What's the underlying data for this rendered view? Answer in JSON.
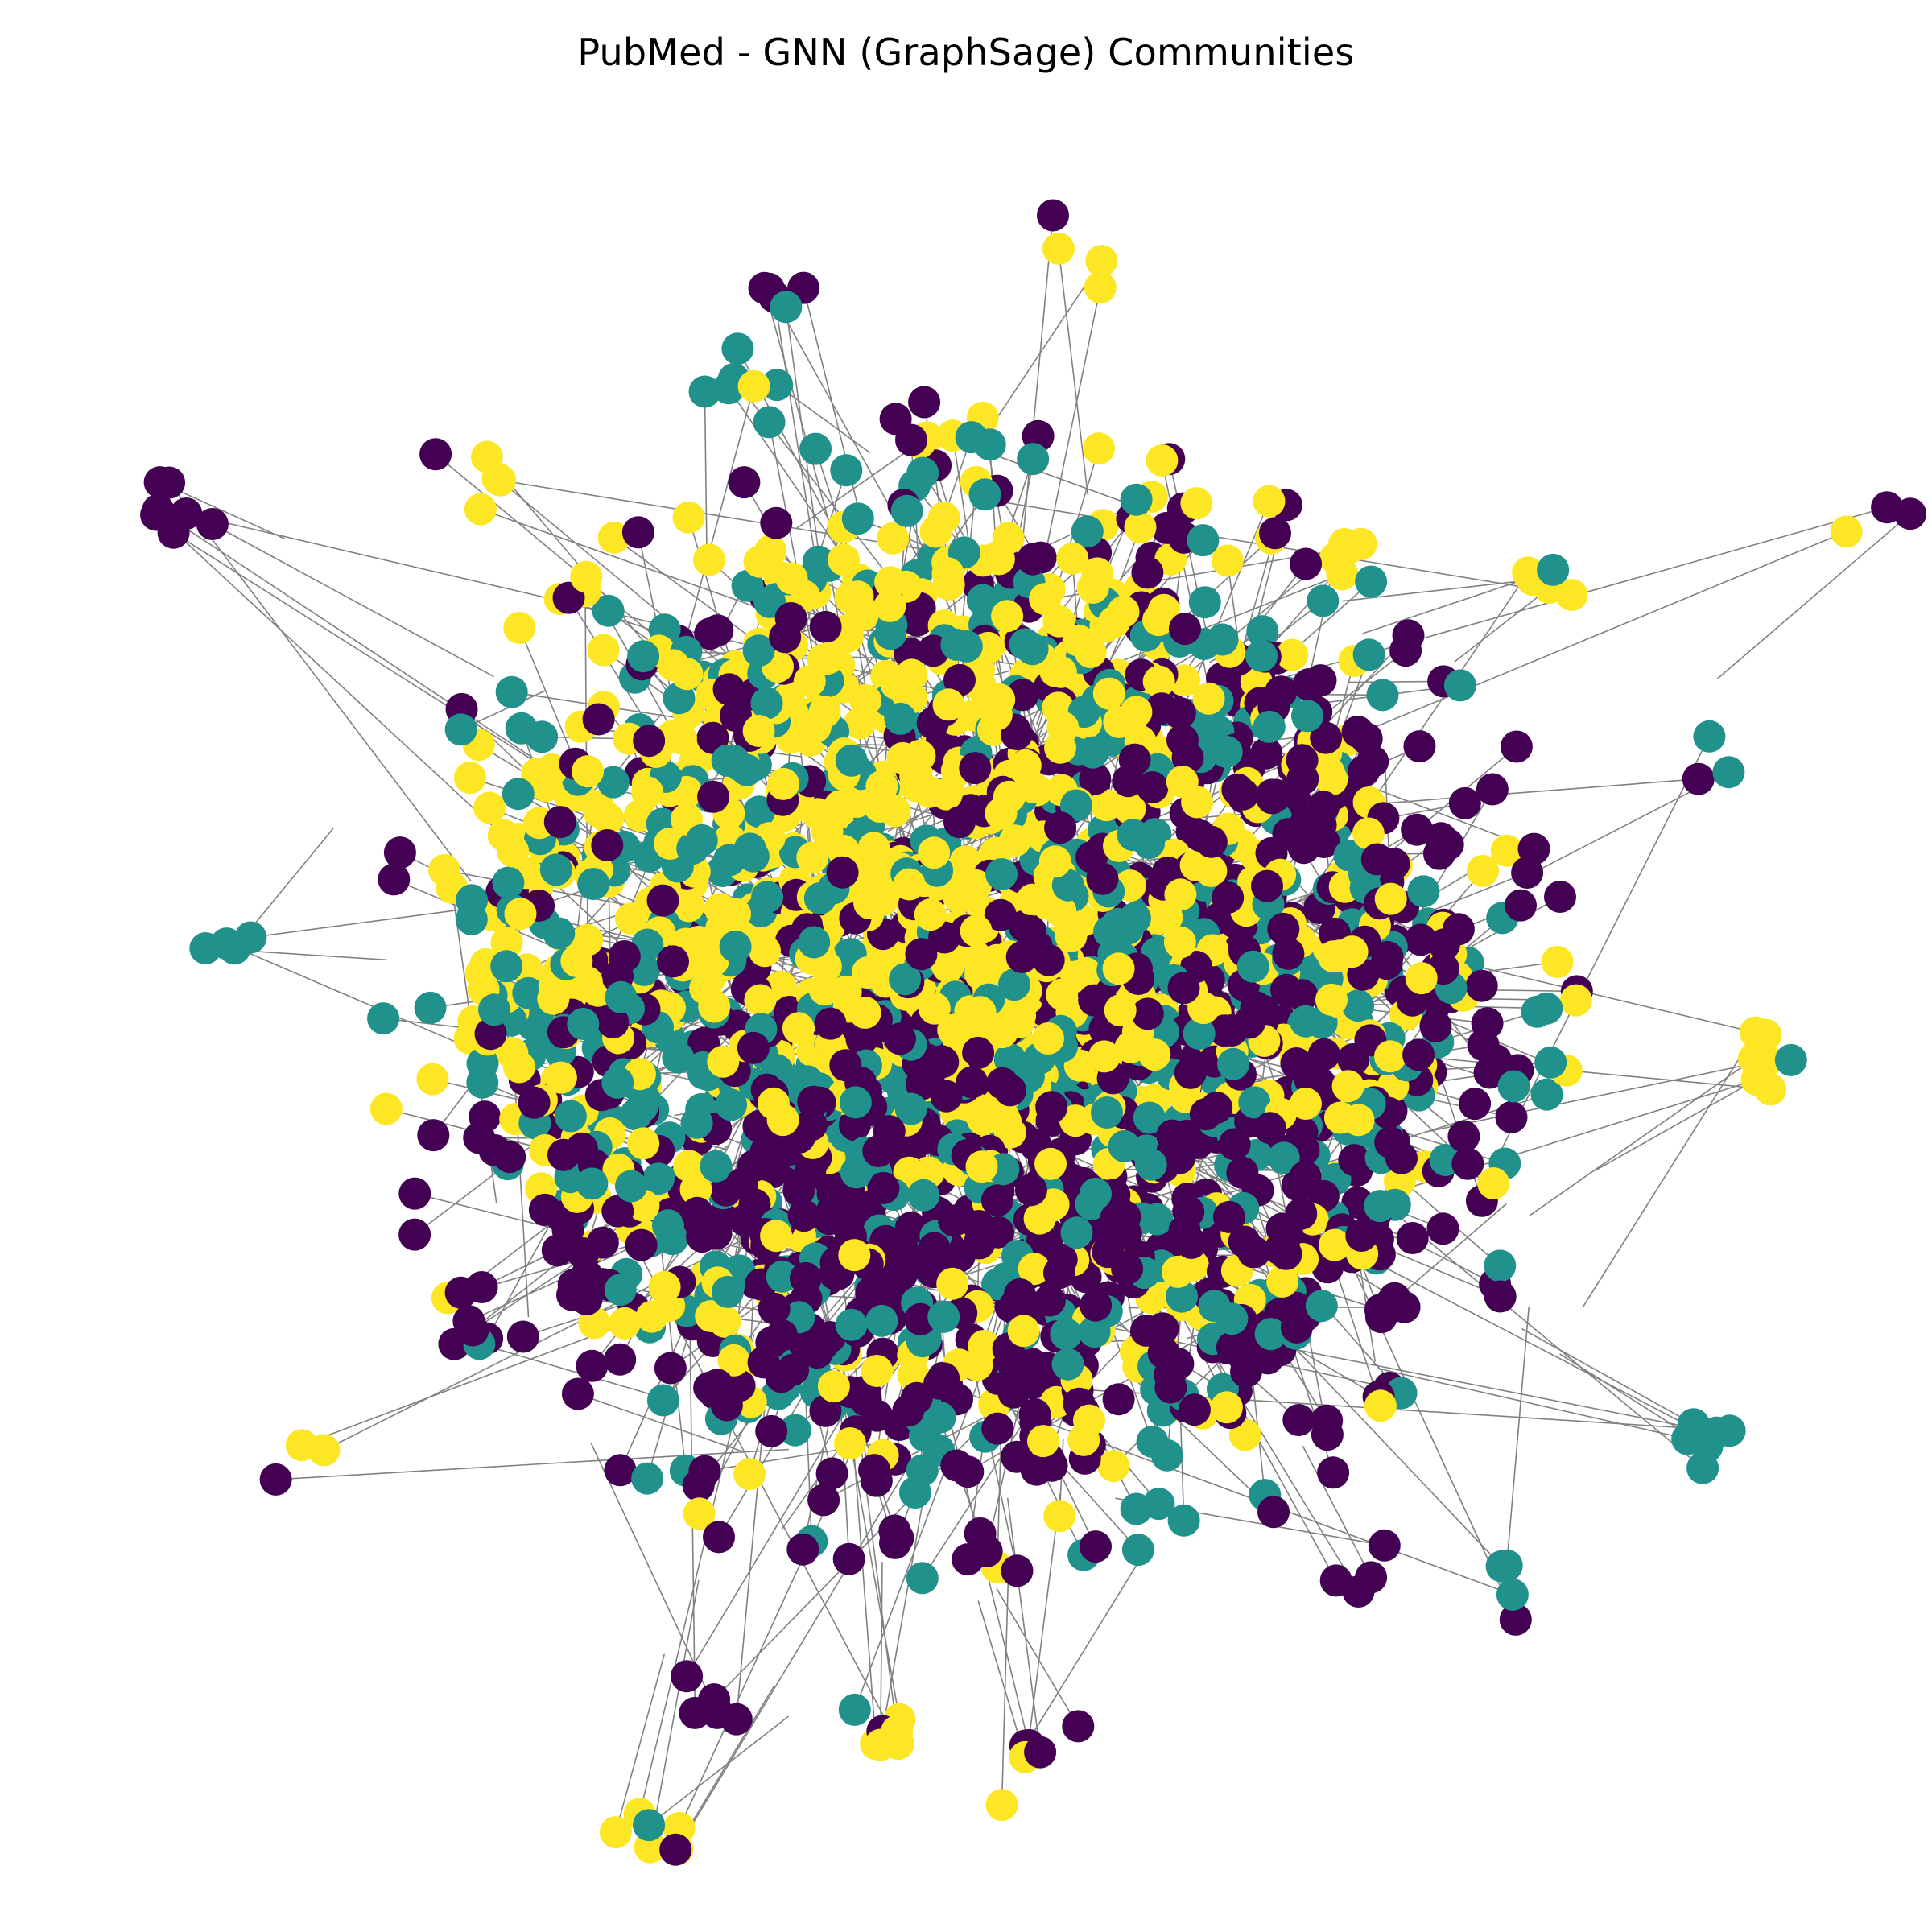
{
  "figure": {
    "title": "PubMed - GNN (GraphSage) Communities"
  },
  "graph": {
    "type": "network",
    "axes": "off",
    "edge_color": "#808080",
    "communities": [
      {
        "id": 0,
        "color": "#440154"
      },
      {
        "id": 1,
        "color": "#21918c"
      },
      {
        "id": 2,
        "color": "#fde725"
      }
    ]
  }
}
